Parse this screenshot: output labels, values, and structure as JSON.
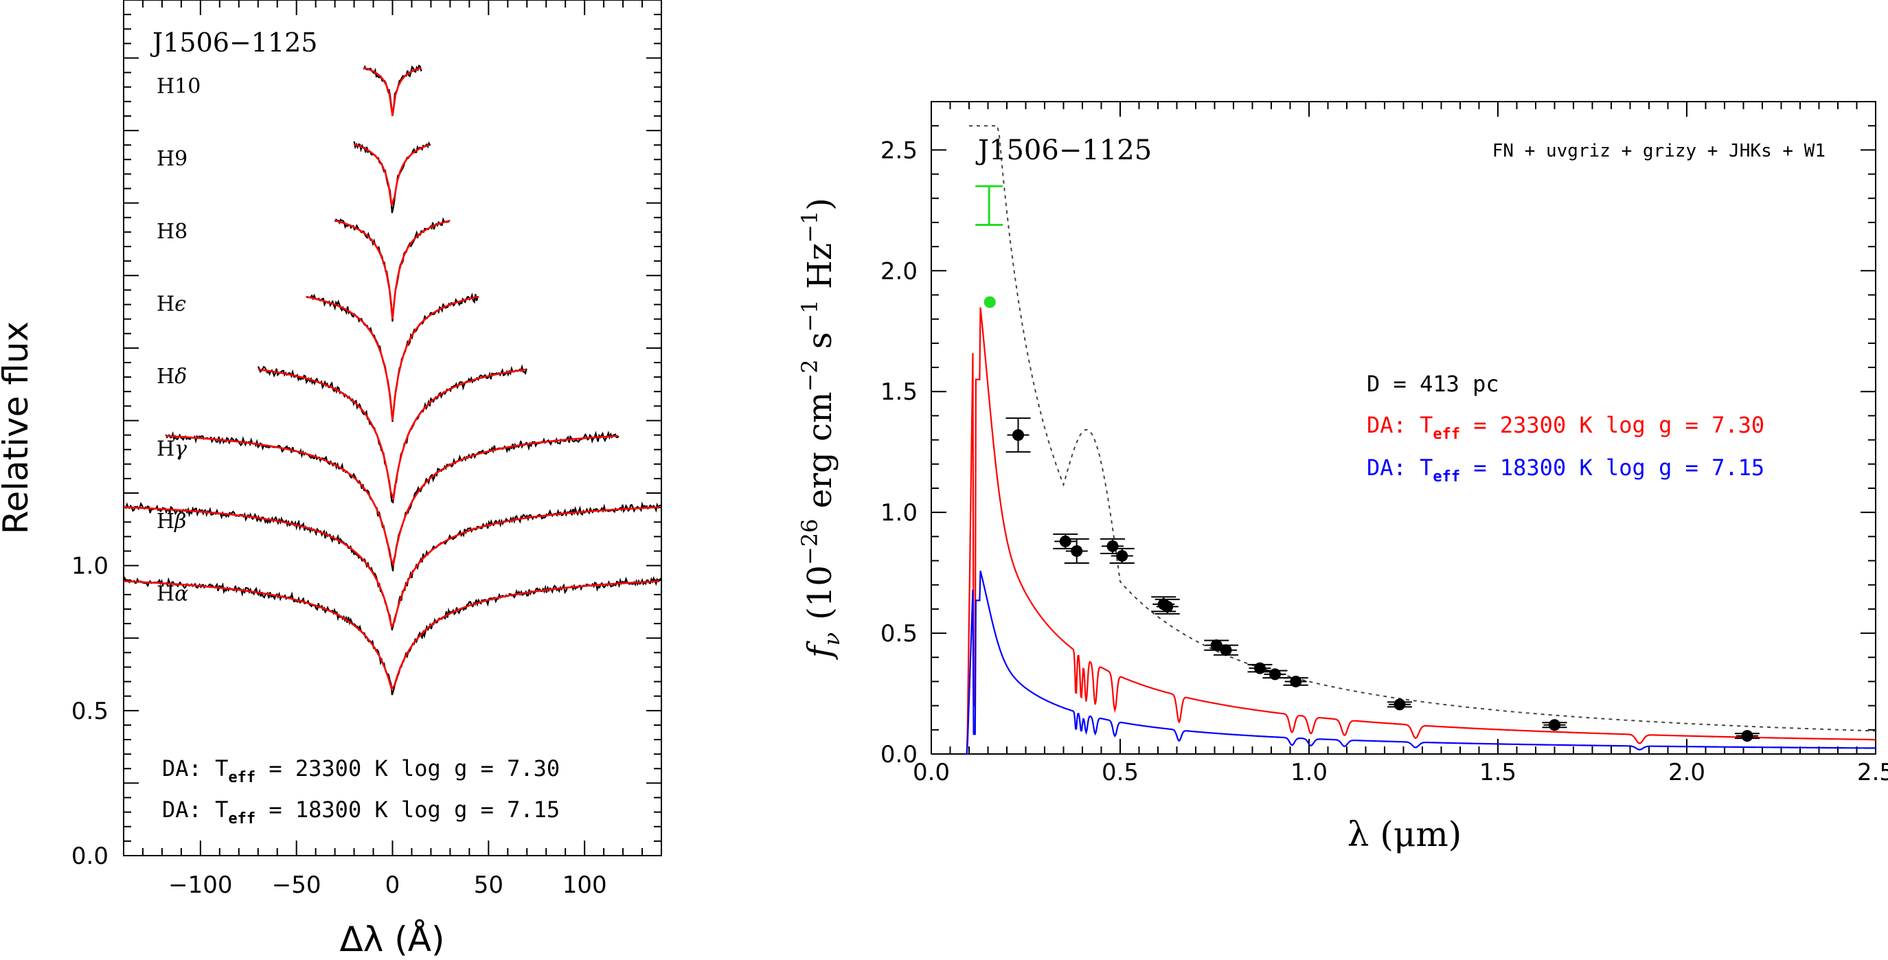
{
  "chart_data": [
    {
      "type": "line",
      "panel": "left",
      "object_label": "J1506−1125",
      "xlabel": "Δλ (Å)",
      "ylabel": "Relative flux",
      "xlim": [
        -140,
        140
      ],
      "ylim": [
        0.0,
        2.95
      ],
      "xticks": [
        -100,
        -50,
        0,
        50,
        100
      ],
      "xtick_labels": [
        "−100",
        "−50",
        "0",
        "50",
        "100"
      ],
      "yticks": [
        0.0,
        0.5,
        1.0
      ],
      "ytick_labels": [
        "0.0",
        "0.5",
        "1.0"
      ],
      "series": [
        {
          "name": "Hα",
          "label_sym": "α",
          "offset": 0.0,
          "halfwidth": 140,
          "depth": 0.44,
          "width": 50
        },
        {
          "name": "Hβ",
          "label_sym": "β",
          "offset": 0.25,
          "halfwidth": 140,
          "depth": 0.48,
          "width": 40
        },
        {
          "name": "Hγ",
          "label_sym": "γ",
          "offset": 0.5,
          "halfwidth": 118,
          "depth": 0.52,
          "width": 34
        },
        {
          "name": "Hδ",
          "label_sym": "δ",
          "offset": 0.75,
          "halfwidth": 70,
          "depth": 0.55,
          "width": 28
        },
        {
          "name": "Hε",
          "label_sym": "ϵ",
          "offset": 1.0,
          "halfwidth": 45,
          "depth": 0.5,
          "width": 20
        },
        {
          "name": "H8",
          "label_sym": "8",
          "offset": 1.25,
          "halfwidth": 30,
          "depth": 0.4,
          "width": 14
        },
        {
          "name": "H9",
          "label_sym": "9",
          "offset": 1.5,
          "halfwidth": 20,
          "depth": 0.3,
          "width": 10
        },
        {
          "name": "H10",
          "label_sym": "10",
          "offset": 1.75,
          "halfwidth": 15,
          "depth": 0.2,
          "width": 8
        }
      ],
      "model_labels": [
        {
          "prefix": "DA:  T",
          "sub": "eff",
          "rest": " = 23300 K  log g = 7.30"
        },
        {
          "prefix": "DA:  T",
          "sub": "eff",
          "rest": " = 18300 K  log g = 7.15"
        }
      ]
    },
    {
      "type": "line",
      "panel": "right",
      "object_label": "J1506−1125",
      "photometry_label": "FN + uvgriz + grizy + JHKs + W1",
      "xlabel": "λ (μm)",
      "ylabel_prefix": "f",
      "ylabel_sub": "ν",
      "ylabel_main": "(10",
      "ylabel_exp1": "−26",
      "ylabel_mid1": " erg cm",
      "ylabel_exp2": "−2",
      "ylabel_mid2": " s",
      "ylabel_exp3": "−1",
      "ylabel_mid3": " Hz",
      "ylabel_exp4": "−1",
      "ylabel_end": ")",
      "xlim": [
        0.0,
        2.5
      ],
      "ylim": [
        0.0,
        2.7
      ],
      "xticks": [
        0.0,
        0.5,
        1.0,
        1.5,
        2.0,
        2.5
      ],
      "xtick_labels": [
        "0.0",
        "0.5",
        "1.0",
        "1.5",
        "2.0",
        "2.5"
      ],
      "yticks": [
        0.0,
        0.5,
        1.0,
        1.5,
        2.0,
        2.5
      ],
      "ytick_labels": [
        "0.0",
        "0.5",
        "1.0",
        "1.5",
        "2.0",
        "2.5"
      ],
      "distance_label": "D = 413 pc",
      "models": [
        {
          "name": "DA 23300 K",
          "prefix": "DA:  T",
          "sub": "eff",
          "rest": " = 23300 K  log g = 7.30",
          "color": "#ff0000",
          "scale": 1.0
        },
        {
          "name": "DA 18300 K",
          "prefix": "DA:  T",
          "sub": "eff",
          "rest": " = 18300 K  log g = 7.15",
          "color": "#0000ff",
          "scale": 0.41
        }
      ],
      "photometry": [
        {
          "x": 0.23,
          "y": 1.32,
          "err": 0.07
        },
        {
          "x": 0.355,
          "y": 0.88,
          "err": 0.03
        },
        {
          "x": 0.385,
          "y": 0.84,
          "err": 0.05
        },
        {
          "x": 0.48,
          "y": 0.86,
          "err": 0.03
        },
        {
          "x": 0.505,
          "y": 0.82,
          "err": 0.03
        },
        {
          "x": 0.615,
          "y": 0.62,
          "err": 0.03
        },
        {
          "x": 0.625,
          "y": 0.61,
          "err": 0.03
        },
        {
          "x": 0.755,
          "y": 0.45,
          "err": 0.02
        },
        {
          "x": 0.78,
          "y": 0.43,
          "err": 0.02
        },
        {
          "x": 0.87,
          "y": 0.355,
          "err": 0.015
        },
        {
          "x": 0.91,
          "y": 0.33,
          "err": 0.015
        },
        {
          "x": 0.965,
          "y": 0.3,
          "err": 0.015
        },
        {
          "x": 1.24,
          "y": 0.205,
          "err": 0.01
        },
        {
          "x": 1.65,
          "y": 0.12,
          "err": 0.01
        },
        {
          "x": 2.16,
          "y": 0.075,
          "err": 0.01
        }
      ],
      "galex_nuv": {
        "x": 0.155,
        "y": 1.87,
        "color": "#22dd22"
      },
      "galex_fuv": {
        "x": 0.153,
        "y": 2.27,
        "err": 0.08,
        "color": "#22dd22"
      }
    }
  ]
}
